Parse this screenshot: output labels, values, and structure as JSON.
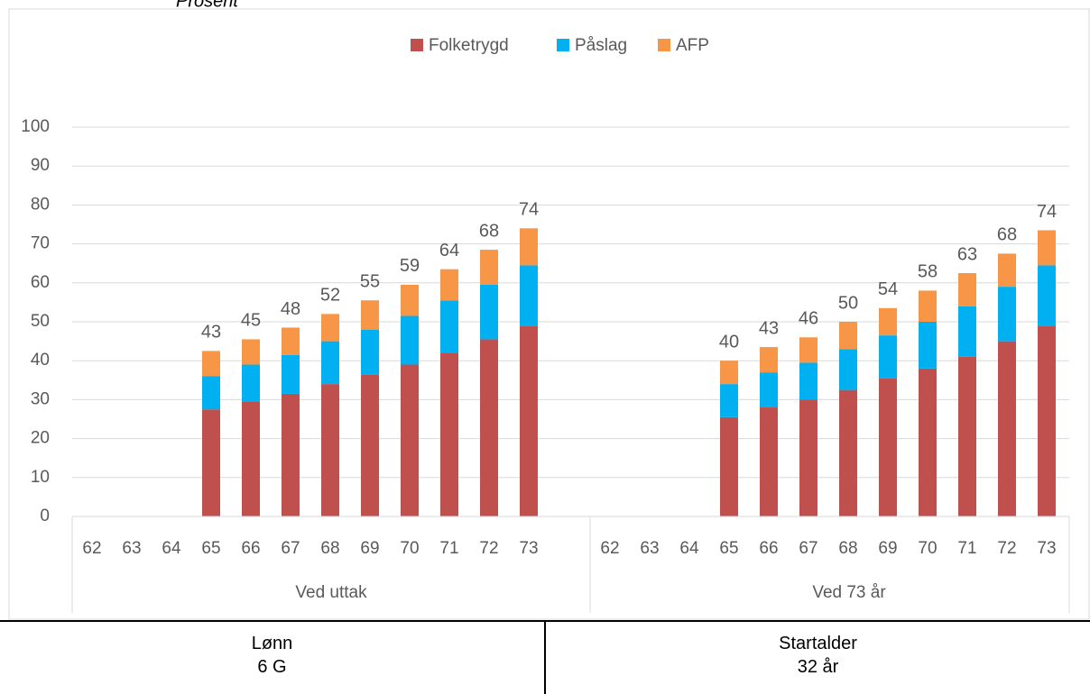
{
  "chart_data": {
    "type": "stacked_bar",
    "ylabel": "Prosent",
    "categories": [
      "62",
      "63",
      "64",
      "65",
      "66",
      "67",
      "68",
      "69",
      "70",
      "71",
      "72",
      "73",
      "62",
      "63",
      "64",
      "65",
      "66",
      "67",
      "68",
      "69",
      "70",
      "71",
      "72",
      "73"
    ],
    "groups": [
      "Ved uttak",
      "Ved 73 år"
    ],
    "series": [
      {
        "name": "Folketrygd",
        "color": "#c0504d",
        "values": [
          null,
          null,
          null,
          27.5,
          29.5,
          31.5,
          34,
          36.5,
          39,
          42,
          45.5,
          49,
          null,
          null,
          null,
          25.5,
          28,
          30,
          32.5,
          35.5,
          38,
          41,
          45,
          49
        ]
      },
      {
        "name": "Påslag",
        "color": "#00b0f0",
        "values": [
          null,
          null,
          null,
          8.5,
          9.5,
          10,
          11,
          11.5,
          12.5,
          13.5,
          14,
          15.5,
          null,
          null,
          null,
          8.5,
          9,
          9.5,
          10.5,
          11,
          12,
          13,
          14,
          15.5
        ]
      },
      {
        "name": "AFP",
        "color": "#f79646",
        "values": [
          null,
          null,
          null,
          6.5,
          6.5,
          7,
          7,
          7.5,
          8,
          8,
          9,
          9.5,
          null,
          null,
          null,
          6,
          6.5,
          6.5,
          7,
          7,
          8,
          8.5,
          8.5,
          9
        ]
      }
    ],
    "totals": [
      null,
      null,
      null,
      43,
      45,
      48,
      52,
      55,
      59,
      64,
      68,
      74,
      null,
      null,
      null,
      40,
      43,
      46,
      50,
      54,
      58,
      63,
      68,
      74
    ],
    "ylim": [
      0,
      100
    ],
    "yticks": [
      0,
      10,
      20,
      30,
      40,
      50,
      60,
      70,
      80,
      90,
      100
    ],
    "grid": true,
    "legend": "top"
  },
  "table": {
    "rows": [
      [
        "Lønn",
        "Startalder"
      ],
      [
        "6 G",
        "32 år"
      ]
    ]
  }
}
